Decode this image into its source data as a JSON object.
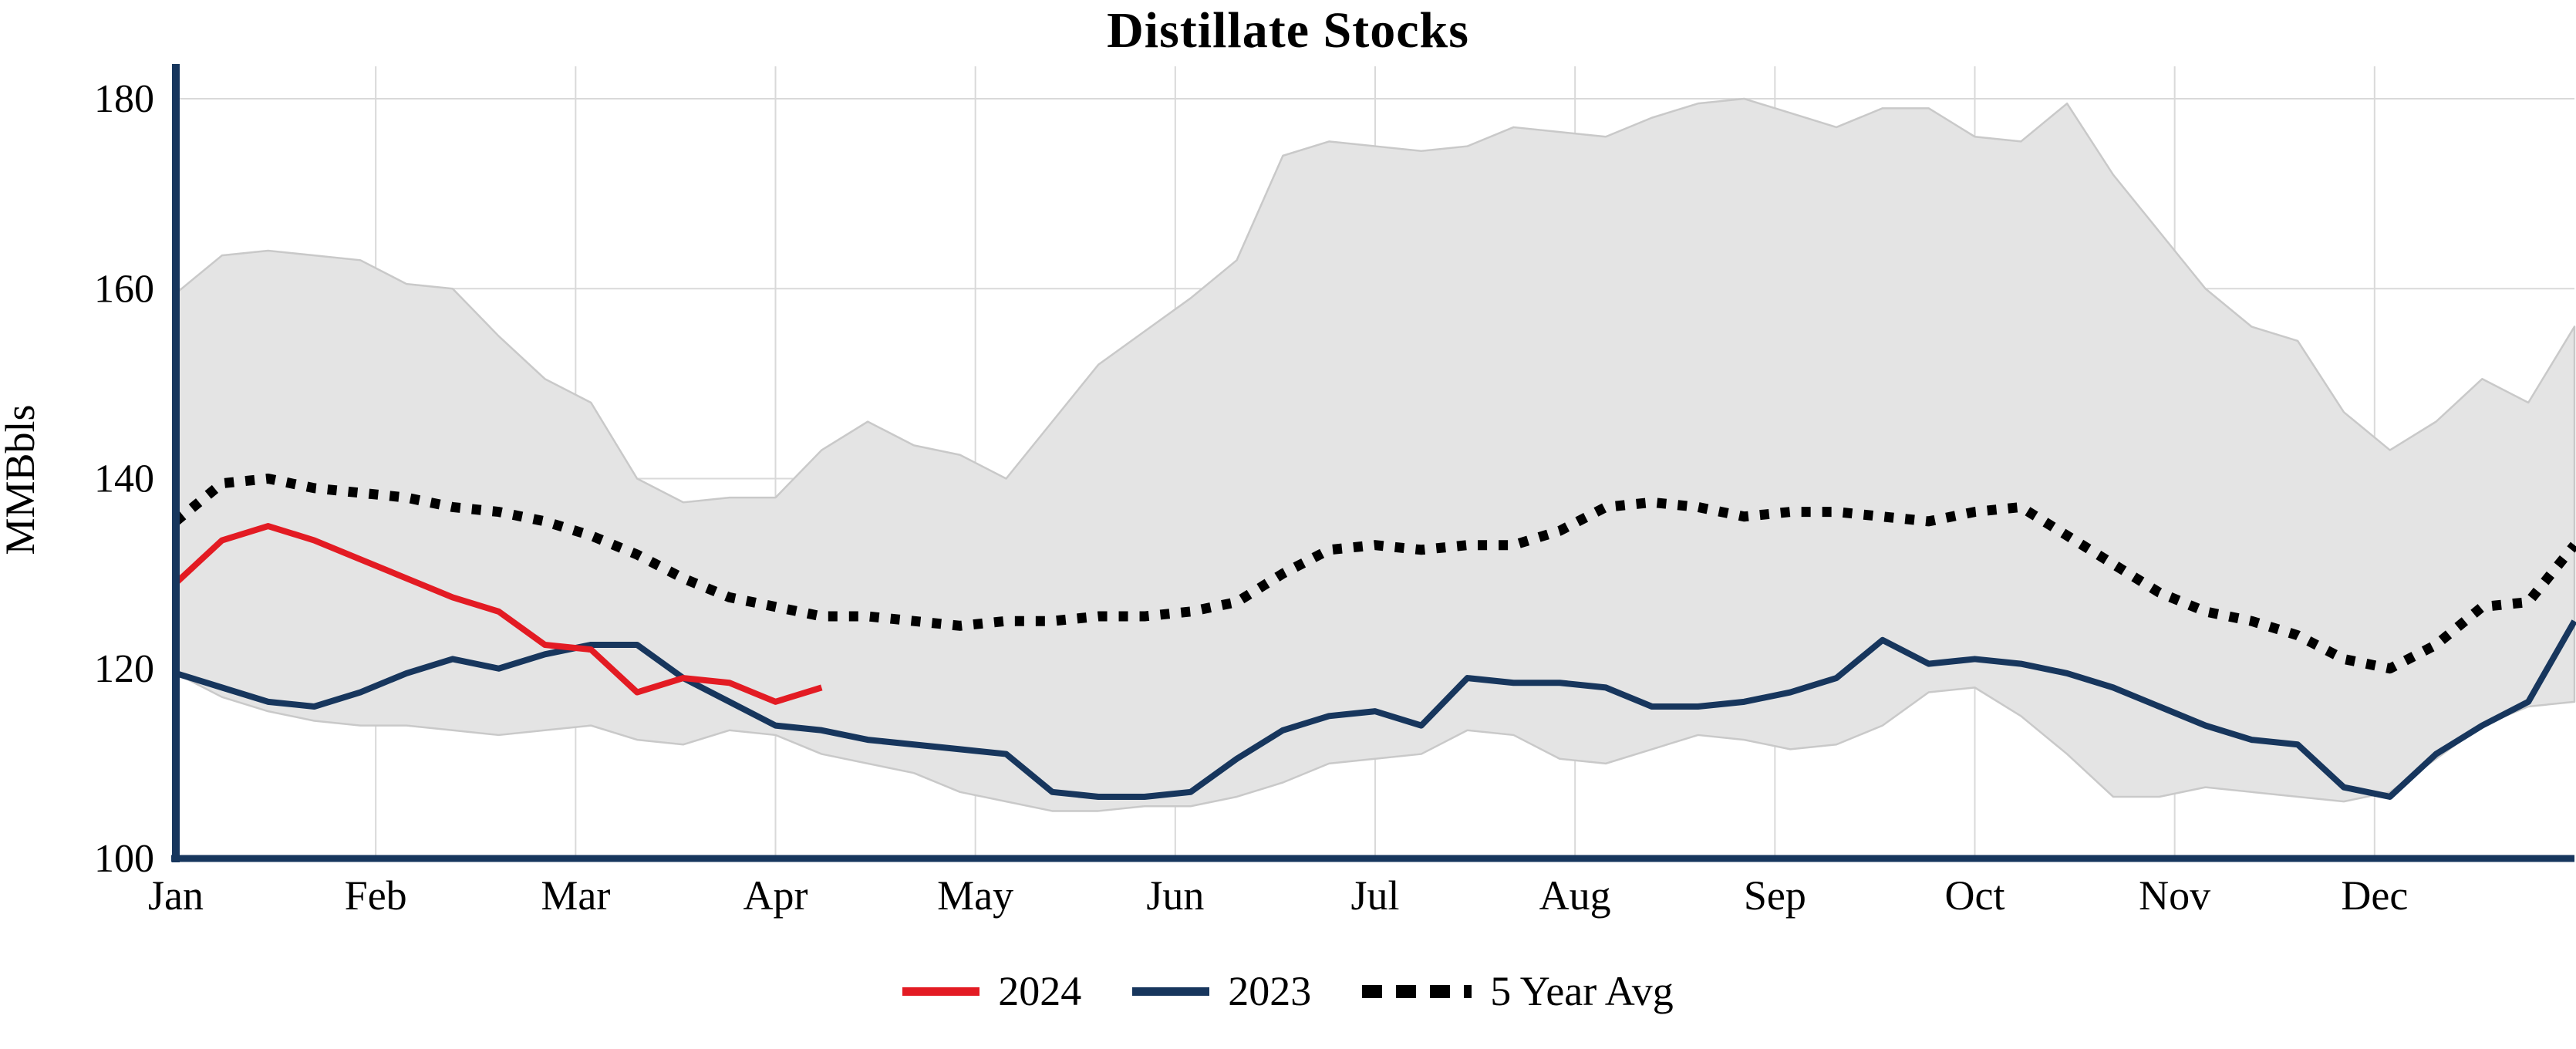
{
  "chart_data": {
    "type": "line",
    "title": "Distillate Stocks",
    "ylabel": "MMBbls",
    "xlabel": "",
    "ylim": [
      100,
      180
    ],
    "yticks": [
      100,
      120,
      140,
      160,
      180
    ],
    "months": [
      "Jan",
      "Feb",
      "Mar",
      "Apr",
      "May",
      "Jun",
      "Jul",
      "Aug",
      "Sep",
      "Oct",
      "Nov",
      "Dec"
    ],
    "weeks": 53,
    "grid": true,
    "legend_position": "bottom",
    "series": [
      {
        "name": "2024",
        "color": "#e31b23",
        "style": "solid",
        "values": [
          129,
          133.5,
          135,
          133.5,
          131.5,
          129.5,
          127.5,
          126,
          122.5,
          122,
          117.5,
          119,
          118.5,
          116.5,
          118
        ]
      },
      {
        "name": "2023",
        "color": "#17365d",
        "style": "solid",
        "values": [
          119.5,
          118,
          116.5,
          116,
          117.5,
          119.5,
          121,
          120,
          121.5,
          122.5,
          122.5,
          119,
          116.5,
          114,
          113.5,
          112.5,
          112,
          111.5,
          111,
          107,
          106.5,
          106.5,
          107,
          110.5,
          113.5,
          115,
          115.5,
          114,
          119,
          118.5,
          118.5,
          118,
          116,
          116,
          116.5,
          117.5,
          119,
          123,
          120.5,
          121,
          120.5,
          119.5,
          118,
          116,
          114,
          112.5,
          112,
          107.5,
          106.5,
          111,
          114,
          116.5,
          125
        ]
      },
      {
        "name": "5 Year Avg",
        "color": "#000000",
        "style": "dotted",
        "values": [
          135.5,
          139.5,
          140,
          139,
          138.5,
          138,
          137,
          136.5,
          135.5,
          134,
          132,
          129.5,
          127.5,
          126.5,
          125.5,
          125.5,
          125,
          124.5,
          125,
          125,
          125.5,
          125.5,
          126,
          127,
          130,
          132.5,
          133,
          132.5,
          133,
          133,
          134.5,
          137,
          137.5,
          137,
          136,
          136.5,
          136.5,
          136,
          135.5,
          136.5,
          137,
          134,
          131,
          128,
          126,
          125,
          123.5,
          121,
          120,
          122.5,
          126.5,
          127,
          133
        ]
      }
    ],
    "band": {
      "name": "5 Year Range",
      "color": "#e4e4e4",
      "edge_color": "#c9c9c9",
      "upper": [
        159.5,
        163.5,
        164,
        163.5,
        163,
        160.5,
        160,
        155,
        150.5,
        148,
        140,
        137.5,
        138,
        138,
        143,
        146,
        143.5,
        142.5,
        140,
        146,
        152,
        155.5,
        159,
        163,
        174,
        175.5,
        175,
        174.5,
        175,
        177,
        176.5,
        176,
        178,
        179.5,
        180,
        178.5,
        177,
        179,
        179,
        176,
        175.5,
        179.5,
        172,
        166,
        160,
        156,
        154.5,
        147,
        143,
        146,
        150.5,
        148,
        156
      ],
      "lower": [
        119.5,
        117,
        115.5,
        114.5,
        114,
        114,
        113.5,
        113,
        113.5,
        114,
        112.5,
        112,
        113.5,
        113,
        111,
        110,
        109,
        107,
        106,
        105,
        105,
        105.5,
        105.5,
        106.5,
        108,
        110,
        110.5,
        111,
        113.5,
        113,
        110.5,
        110,
        111.5,
        113,
        112.5,
        111.5,
        112,
        114,
        117.5,
        118,
        115,
        111,
        106.5,
        106.5,
        107.5,
        107,
        106.5,
        106,
        107,
        110.5,
        114,
        116,
        116.5
      ]
    }
  },
  "colors": {
    "axis": "#17365d",
    "grid": "#d9d9d9",
    "text": "#000000"
  }
}
